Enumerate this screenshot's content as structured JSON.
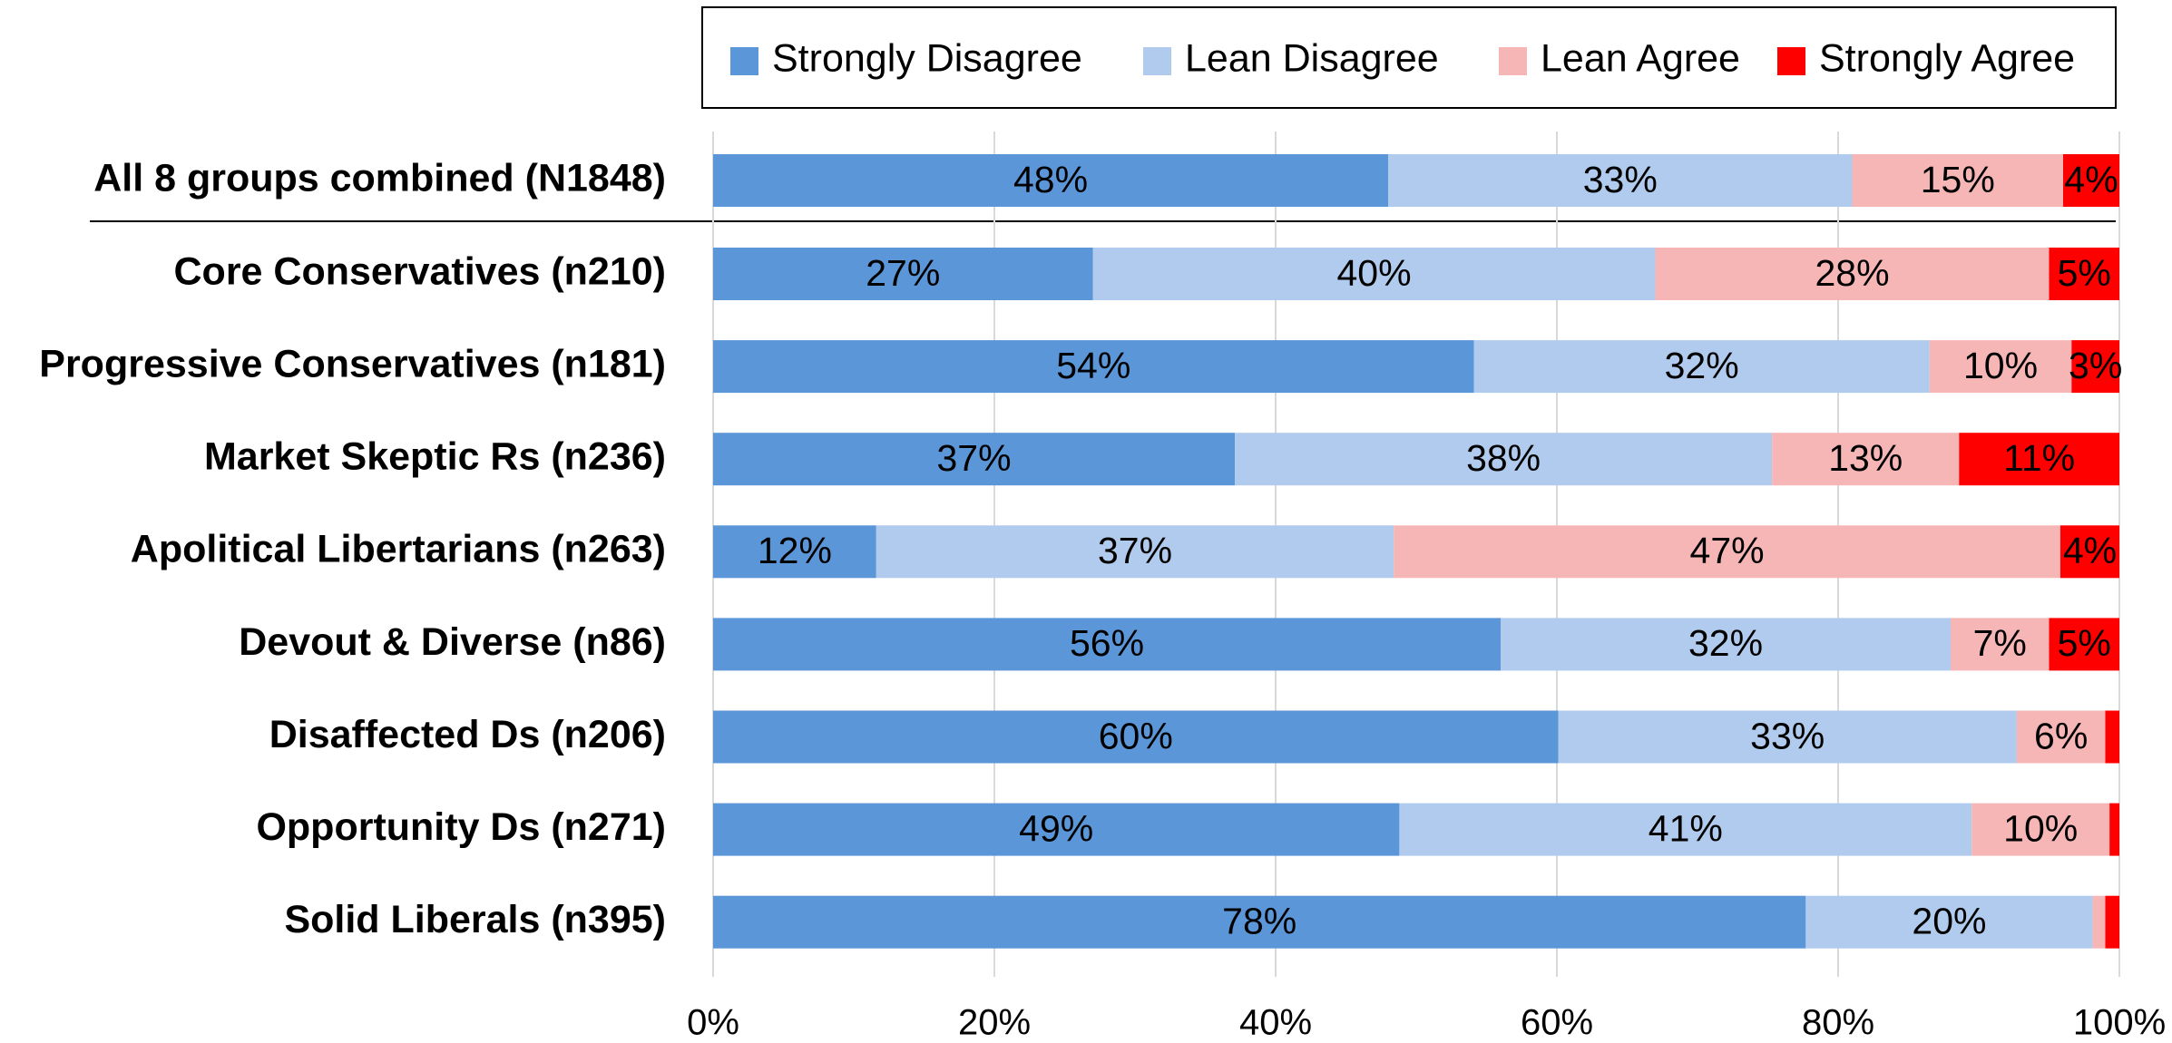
{
  "chart_data": {
    "type": "stacked_barh",
    "categories": [
      "All 8 groups combined (N1848)",
      "Core Conservatives (n210)",
      "Progressive Conservatives (n181)",
      "Market Skeptic Rs (n236)",
      "Apolitical Libertarians (n263)",
      "Devout & Diverse (n86)",
      "Disaffected Ds (n206)",
      "Opportunity Ds (n271)",
      "Solid Liberals (n395)"
    ],
    "series": [
      {
        "name": "Strongly Disagree",
        "color": "#5b96d8",
        "values": [
          48,
          27,
          54.1,
          37.1,
          11.6,
          56,
          60.1,
          48.8,
          77.7
        ],
        "value_labels": [
          "48%",
          "27%",
          "54%",
          "37%",
          "12%",
          "56%",
          "60%",
          "49%",
          "78%"
        ]
      },
      {
        "name": "Lean Disagree",
        "color": "#b0cbed",
        "values": [
          33,
          40,
          32.4,
          38.2,
          36.8,
          32,
          32.6,
          40.7,
          20.4
        ],
        "value_labels": [
          "33%",
          "40%",
          "32%",
          "38%",
          "37%",
          "32%",
          "33%",
          "41%",
          "20%"
        ]
      },
      {
        "name": "Lean Agree",
        "color": "#f7b6b6",
        "values": [
          15,
          28,
          10.1,
          13.3,
          47.4,
          7,
          6.3,
          9.8,
          0.9
        ],
        "value_labels": [
          "15%",
          "28%",
          "10%",
          "13%",
          "47%",
          "7%",
          "6%",
          "10%",
          null
        ]
      },
      {
        "name": "Strongly Agree",
        "color": "#ff0000",
        "values": [
          4,
          5,
          3.4,
          11.4,
          4.2,
          5,
          1.0,
          0.7,
          1.0
        ],
        "value_labels": [
          "4%",
          "5%",
          "3%",
          "11%",
          "4%",
          "5%",
          null,
          null,
          null
        ]
      }
    ],
    "xlim": [
      0,
      100
    ],
    "xticks": [
      {
        "value": 0,
        "label": "0%"
      },
      {
        "value": 20,
        "label": "20%"
      },
      {
        "value": 40,
        "label": "40%"
      },
      {
        "value": 60,
        "label": "60%"
      },
      {
        "value": 80,
        "label": "80%"
      },
      {
        "value": 100,
        "label": "100%"
      }
    ],
    "grid": true,
    "legend": "top"
  }
}
